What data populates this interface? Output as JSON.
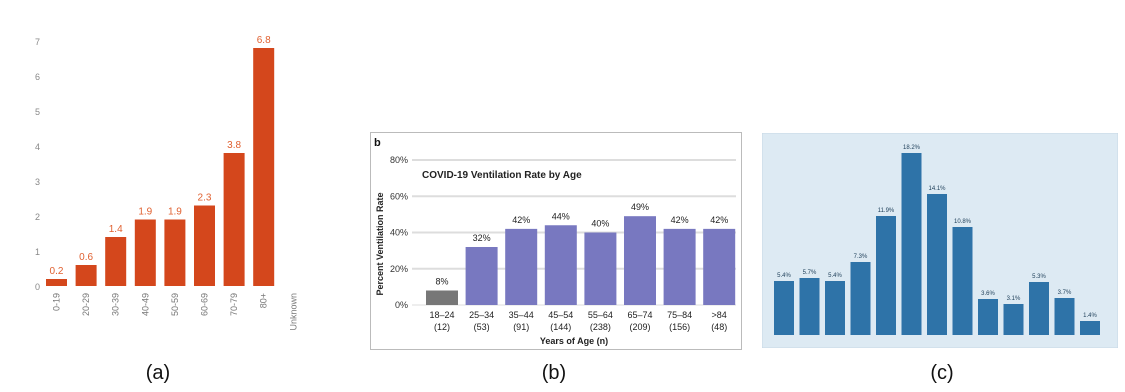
{
  "captions": [
    "(a)",
    "(b)",
    "(c)"
  ],
  "chart_data": [
    {
      "type": "bar",
      "categories": [
        "0-19",
        "20-29",
        "30-39",
        "40-49",
        "50-59",
        "60-69",
        "70-79",
        "80+",
        "Unknown"
      ],
      "values": [
        0.2,
        0.6,
        1.4,
        1.9,
        1.9,
        2.3,
        3.8,
        6.8,
        null
      ],
      "value_labels": [
        "0.2",
        "0.6",
        "1.4",
        "1.9",
        "1.9",
        "2.3",
        "3.8",
        "6.8",
        ""
      ],
      "yticks": [
        "0",
        "1",
        "2",
        "3",
        "4",
        "5",
        "6",
        "7"
      ],
      "ylim": [
        0,
        7.6
      ],
      "colors": {
        "bar": "#d4471c",
        "label": "#e06030",
        "tick": "#888888"
      }
    },
    {
      "type": "bar",
      "panel_letter": "b",
      "title": "COVID-19 Ventilation Rate by Age",
      "ylabel": "Percent Ventilation Rate",
      "xlabel": "Years of Age (n)",
      "categories": [
        "18–24",
        "25–34",
        "35–44",
        "45–54",
        "55–64",
        "65–74",
        "75–84",
        ">84"
      ],
      "n_labels": [
        "(12)",
        "(53)",
        "(91)",
        "(144)",
        "(238)",
        "(209)",
        "(156)",
        "(48)"
      ],
      "values": [
        8,
        32,
        42,
        44,
        40,
        49,
        42,
        42
      ],
      "value_labels": [
        "8%",
        "32%",
        "42%",
        "44%",
        "40%",
        "49%",
        "42%",
        "42%"
      ],
      "yticks": [
        "0%",
        "20%",
        "40%",
        "60%",
        "80%"
      ],
      "ylim": [
        0,
        80
      ],
      "colors": {
        "bar": "#7878c0",
        "first_bar": "#777",
        "grid": "#dddddd"
      }
    },
    {
      "type": "bar",
      "values": [
        5.4,
        5.7,
        5.4,
        7.3,
        11.9,
        18.2,
        14.1,
        10.8,
        3.6,
        3.1,
        5.3,
        3.7,
        1.4
      ],
      "value_labels": [
        "5.4%",
        "5.7%",
        "5.4%",
        "7.3%",
        "11.9%",
        "18.2%",
        "14.1%",
        "10.8%",
        "3.6%",
        "3.1%",
        "5.3%",
        "3.7%",
        "1.4%"
      ],
      "ylim": [
        0,
        19
      ],
      "colors": {
        "bar": "#2e73a8",
        "background": "#ddeaf3"
      }
    }
  ]
}
